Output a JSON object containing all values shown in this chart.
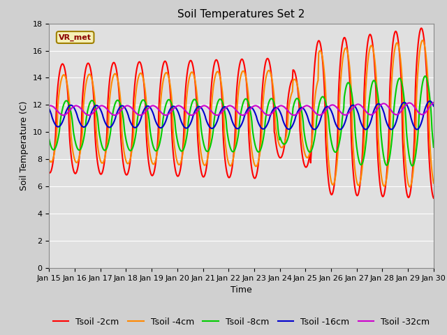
{
  "title": "Soil Temperatures Set 2",
  "xlabel": "Time",
  "ylabel": "Soil Temperature (C)",
  "ylim": [
    0,
    18
  ],
  "yticks": [
    0,
    2,
    4,
    6,
    8,
    10,
    12,
    14,
    16,
    18
  ],
  "x_start_day": 15,
  "x_end_day": 30,
  "x_tick_days": [
    15,
    16,
    17,
    18,
    19,
    20,
    21,
    22,
    23,
    24,
    25,
    26,
    27,
    28,
    29,
    30
  ],
  "colors": {
    "tsoil_2cm": "#ff0000",
    "tsoil_4cm": "#ff8800",
    "tsoil_8cm": "#00cc00",
    "tsoil_16cm": "#0000cc",
    "tsoil_32cm": "#cc00cc"
  },
  "legend_labels": [
    "Tsoil -2cm",
    "Tsoil -4cm",
    "Tsoil -8cm",
    "Tsoil -16cm",
    "Tsoil -32cm"
  ],
  "annotation_text": "VR_met",
  "fig_bg_color": "#d0d0d0",
  "plot_bg_color": "#e0e0e0",
  "grid_color": "#c0c0c0",
  "title_fontsize": 11,
  "axis_label_fontsize": 9,
  "tick_fontsize": 8,
  "legend_fontsize": 9,
  "linewidth": 1.5
}
